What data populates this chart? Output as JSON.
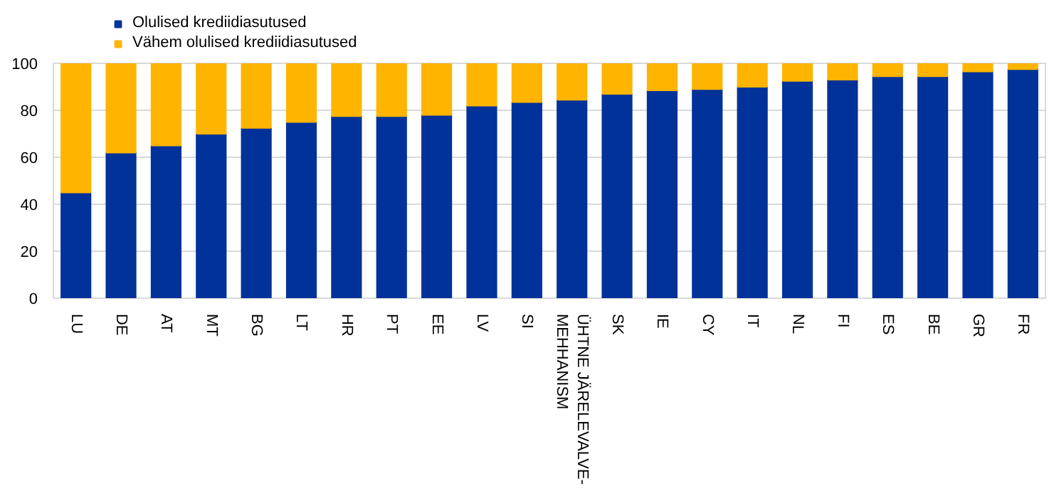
{
  "chart_data": {
    "type": "bar",
    "stacked": true,
    "categories": [
      "LU",
      "DE",
      "AT",
      "MT",
      "BG",
      "LT",
      "HR",
      "PT",
      "EE",
      "LV",
      "SI",
      "ÜHTNE JÄRELEVALVE-MEHHANISM",
      "SK",
      "IE",
      "CY",
      "IT",
      "NL",
      "FI",
      "ES",
      "BE",
      "GR",
      "FR"
    ],
    "series": [
      {
        "name": "Olulised krediidiasutused",
        "color": "#003299",
        "values": [
          45,
          62,
          65,
          70,
          72.5,
          75,
          77.5,
          77.5,
          78,
          82,
          83.5,
          84.5,
          87,
          88.5,
          89,
          90,
          92.5,
          93,
          94.5,
          94.5,
          96.5,
          97.5
        ]
      },
      {
        "name": "Vähem olulised krediidiasutused",
        "color": "#ffb400",
        "values": [
          55,
          38,
          35,
          30,
          27.5,
          25,
          22.5,
          22.5,
          22,
          18,
          16.5,
          15.5,
          13,
          11.5,
          11,
          10,
          7.5,
          7,
          5.5,
          5.5,
          3.5,
          2.5
        ]
      }
    ],
    "ylim": [
      0,
      100
    ],
    "yticks": [
      0,
      20,
      40,
      60,
      80,
      100
    ],
    "grid": "y",
    "legend": "top left"
  }
}
